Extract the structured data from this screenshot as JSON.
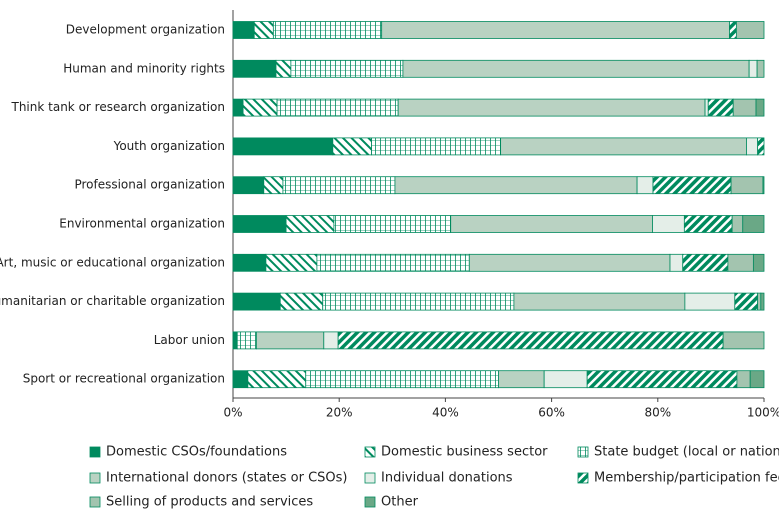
{
  "chart_data": {
    "type": "stacked_bar_horizontal",
    "categories": [
      "Development organization",
      "Human and minority rights",
      "Think tank or research organization",
      "Youth organization",
      "Professional organization",
      "Environmental organization",
      "Art, music or educational organization",
      "Humanitarian or charitable organization",
      "Labor union",
      "Sport or recreational organization"
    ],
    "series": [
      {
        "name": "Domestic CSOs/foundations",
        "color": "#008a5e",
        "pattern": "solid",
        "values": [
          4,
          8.1,
          1.9,
          18.8,
          5.8,
          10,
          6.2,
          8.9,
          0.8,
          2.8
        ]
      },
      {
        "name": "Domestic business sector",
        "color": "#008a5e",
        "pattern": "back-diagonal",
        "values": [
          3.6,
          2.8,
          6.4,
          7.3,
          3.6,
          9,
          9.6,
          8,
          0,
          10.9
        ]
      },
      {
        "name": "State budget (local or national)",
        "color": "#008a5e",
        "pattern": "grid",
        "values": [
          20.4,
          21.1,
          22.8,
          24.3,
          21.1,
          22,
          28.7,
          36,
          3.6,
          36.3
        ]
      },
      {
        "name": "International donors (states or CSOs)",
        "color": "#b9d2c2",
        "pattern": "solid",
        "values": [
          65.5,
          65.2,
          57.8,
          46.3,
          45.6,
          38,
          37.8,
          32.2,
          12.7,
          8.6
        ]
      },
      {
        "name": "Individual donations",
        "color": "#e4eee8",
        "pattern": "solid",
        "values": [
          0,
          1.5,
          0.6,
          2.1,
          3,
          6,
          2.4,
          9.4,
          2.7,
          8.1
        ]
      },
      {
        "name": "Membership/participation fees",
        "color": "#008a5e",
        "pattern": "forward-diagonal",
        "values": [
          1.3,
          0,
          4.7,
          1.2,
          14.7,
          9,
          8.5,
          4.3,
          72.5,
          28.2
        ]
      },
      {
        "name": "Selling of products and services",
        "color": "#a3c4af",
        "pattern": "solid",
        "values": [
          5.2,
          1.3,
          4.3,
          0,
          6,
          2,
          4.8,
          0.6,
          7.7,
          2.5
        ]
      },
      {
        "name": "Other",
        "color": "#6aa886",
        "pattern": "solid",
        "values": [
          0,
          0,
          1.5,
          0,
          0.2,
          4,
          2,
          0.6,
          0,
          2.6
        ]
      }
    ],
    "xlim": [
      0,
      100
    ],
    "xticks": [
      {
        "value": 0,
        "label": "0%"
      },
      {
        "value": 20,
        "label": "20%"
      },
      {
        "value": 40,
        "label": "40%"
      },
      {
        "value": 60,
        "label": "60%"
      },
      {
        "value": 80,
        "label": "80%"
      },
      {
        "value": 100,
        "label": "100%"
      }
    ],
    "legend": "bottom"
  }
}
